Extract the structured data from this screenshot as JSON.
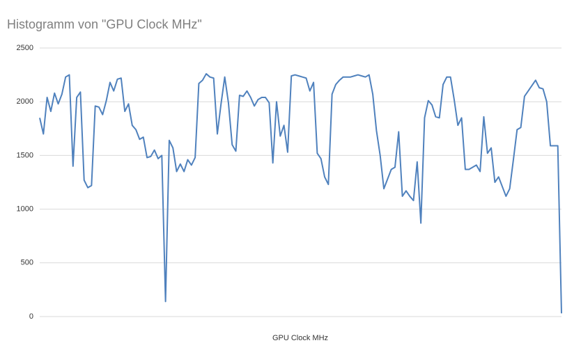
{
  "chart_data": {
    "type": "line",
    "title": "Histogramm von \"GPU Clock MHz\"",
    "x_label": "GPU Clock MHz",
    "categories": [
      null,
      null,
      null,
      null,
      null,
      null,
      null,
      null,
      null,
      null,
      null,
      null,
      null,
      null,
      null,
      null,
      null,
      null,
      null,
      null,
      null,
      null,
      null,
      null,
      null,
      null,
      null,
      null,
      null,
      null,
      null,
      null,
      null,
      null,
      null,
      null,
      null,
      null,
      null,
      null,
      null,
      null,
      null,
      null,
      null,
      null,
      null,
      null,
      null,
      null,
      null,
      null,
      null,
      null,
      null,
      null,
      null,
      null,
      null,
      null,
      null,
      null,
      null,
      null,
      null,
      null,
      null,
      null,
      null,
      null,
      null,
      null,
      null,
      null,
      null,
      null,
      null,
      null,
      null,
      null,
      null,
      null,
      null,
      null,
      null,
      null,
      null,
      null,
      null,
      null,
      null,
      null,
      null,
      null,
      null,
      null,
      null,
      null,
      null,
      null,
      null,
      null,
      null,
      null,
      null,
      null,
      null,
      null,
      null,
      null,
      null,
      null,
      null,
      null,
      null,
      null,
      null,
      null,
      null,
      null,
      null,
      null,
      null,
      null,
      null,
      null,
      null,
      null,
      null,
      null,
      null,
      null,
      null,
      null,
      null,
      null,
      null,
      null,
      null,
      null,
      null,
      null
    ],
    "values": [
      1850,
      1700,
      2040,
      1910,
      2080,
      1980,
      2070,
      2230,
      2250,
      1400,
      2040,
      2090,
      1270,
      1200,
      1220,
      1960,
      1950,
      1880,
      2010,
      2180,
      2100,
      2210,
      2220,
      1910,
      1980,
      1780,
      1740,
      1650,
      1670,
      1480,
      1490,
      1550,
      1470,
      1500,
      140,
      1640,
      1570,
      1350,
      1420,
      1350,
      1460,
      1410,
      1480,
      2170,
      2200,
      2260,
      2230,
      2220,
      1700,
      1980,
      2230,
      1990,
      1600,
      1540,
      2060,
      2050,
      2100,
      2040,
      1960,
      2020,
      2040,
      2040,
      1990,
      1430,
      2000,
      1680,
      1780,
      1530,
      2240,
      2250,
      2240,
      2230,
      2220,
      2100,
      2180,
      1520,
      1470,
      1300,
      1230,
      2070,
      2160,
      2200,
      2230,
      2230,
      2230,
      2240,
      2250,
      2240,
      2230,
      2250,
      2070,
      1730,
      1500,
      1190,
      1280,
      1370,
      1390,
      1720,
      1120,
      1170,
      1120,
      1080,
      1440,
      870,
      1850,
      2010,
      1970,
      1860,
      1850,
      2160,
      2230,
      2230,
      2020,
      1780,
      1850,
      1370,
      1370,
      1390,
      1410,
      1350,
      1860,
      1520,
      1570,
      1250,
      1300,
      1210,
      1120,
      1190,
      1460,
      1740,
      1760,
      2050,
      2100,
      2150,
      2200,
      2130,
      2120,
      2000,
      1590,
      1590,
      1590,
      30
    ],
    "color": "#4f81bd",
    "ylim": [
      0,
      2500
    ],
    "yticks": [
      0,
      500,
      1000,
      1500,
      2000,
      2500
    ],
    "grid": true
  }
}
